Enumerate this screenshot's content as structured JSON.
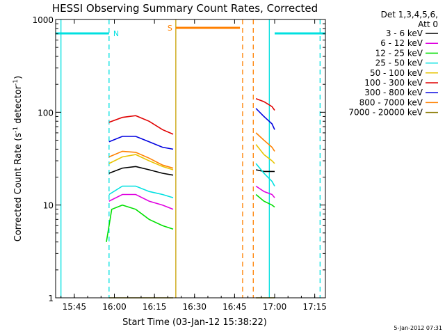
{
  "chart_data": {
    "type": "line",
    "title": "HESSI Observing Summary Count Rates, Corrected",
    "xlabel": "Start Time (03-Jan-12 15:38:22)",
    "ylabel": "Corrected Count Rate (s⁻¹ detector⁻¹)",
    "ylabel_base": "Corrected Count Rate (s",
    "ylabel_mid": " detector",
    "ylabel_end": ")",
    "ylabel_exp": "-1",
    "yscale": "log",
    "ylim": [
      1,
      1000
    ],
    "xlim": [
      "15:38",
      "17:19"
    ],
    "x_ticks": [
      "15:45",
      "16:00",
      "16:15",
      "16:30",
      "16:45",
      "17:00",
      "17:15"
    ],
    "y_ticks": [
      "1",
      "10",
      "100",
      "1000"
    ],
    "legend_header": [
      "Det 1,3,4,5,6,",
      "Att 0"
    ],
    "legend_position": "outside-right",
    "footer_date": "5-Jan-2012 07:31",
    "series": [
      {
        "name": "3 - 6 keV",
        "color": "#000000",
        "segments": [
          {
            "t": [
              "15:58",
              "16:03",
              "16:08",
              "16:13",
              "16:18",
              "16:22"
            ],
            "y": [
              22,
              25,
              26,
              24,
              22,
              21
            ]
          },
          {
            "t": [
              "16:53",
              "16:56",
              "16:59",
              "17:00"
            ],
            "y": [
              24,
              23,
              23,
              23
            ]
          }
        ]
      },
      {
        "name": "6 - 12 keV",
        "color": "#e000e0",
        "segments": [
          {
            "t": [
              "15:58",
              "16:03",
              "16:08",
              "16:13",
              "16:18",
              "16:22"
            ],
            "y": [
              11,
              13,
              13,
              11,
              10,
              9
            ]
          },
          {
            "t": [
              "16:53",
              "16:56",
              "16:59",
              "17:00"
            ],
            "y": [
              16,
              14,
              13,
              12
            ]
          }
        ]
      },
      {
        "name": "12 - 25 keV",
        "color": "#00e000",
        "segments": [
          {
            "t": [
              "15:57",
              "15:59",
              "16:03",
              "16:08",
              "16:13",
              "16:18",
              "16:22"
            ],
            "y": [
              4,
              9,
              10,
              9,
              7,
              6,
              5.5
            ]
          },
          {
            "t": [
              "16:53",
              "16:56",
              "16:59",
              "17:00"
            ],
            "y": [
              13,
              11,
              10,
              9.5
            ]
          }
        ]
      },
      {
        "name": "25 - 50 keV",
        "color": "#00e0e0",
        "segments": [
          {
            "t": [
              "15:58",
              "16:03",
              "16:08",
              "16:13",
              "16:18",
              "16:22"
            ],
            "y": [
              13,
              16,
              16,
              14,
              13,
              12
            ]
          },
          {
            "t": [
              "16:53",
              "16:56",
              "16:59",
              "17:00"
            ],
            "y": [
              28,
              22,
              18,
              16
            ]
          }
        ]
      },
      {
        "name": "50 - 100 keV",
        "color": "#e8c400",
        "segments": [
          {
            "t": [
              "15:58",
              "16:03",
              "16:08",
              "16:13",
              "16:18",
              "16:22"
            ],
            "y": [
              28,
              33,
              35,
              30,
              26,
              24
            ]
          },
          {
            "t": [
              "16:53",
              "16:56",
              "16:59",
              "17:00"
            ],
            "y": [
              45,
              35,
              30,
              28
            ]
          }
        ]
      },
      {
        "name": "100 - 300 keV",
        "color": "#e00000",
        "segments": [
          {
            "t": [
              "15:58",
              "16:03",
              "16:08",
              "16:13",
              "16:18",
              "16:22"
            ],
            "y": [
              78,
              88,
              92,
              80,
              65,
              58
            ]
          },
          {
            "t": [
              "16:53",
              "16:56",
              "16:59",
              "17:00"
            ],
            "y": [
              140,
              130,
              115,
              105
            ]
          }
        ]
      },
      {
        "name": "300 - 800 keV",
        "color": "#0000e0",
        "segments": [
          {
            "t": [
              "15:58",
              "16:03",
              "16:08",
              "16:13",
              "16:18",
              "16:22"
            ],
            "y": [
              48,
              55,
              55,
              48,
              42,
              40
            ]
          },
          {
            "t": [
              "16:53",
              "16:56",
              "16:59",
              "17:00"
            ],
            "y": [
              110,
              90,
              75,
              65
            ]
          }
        ]
      },
      {
        "name": "800 - 7000 keV",
        "color": "#ff8000",
        "segments": [
          {
            "t": [
              "15:58",
              "16:03",
              "16:08",
              "16:13",
              "16:18",
              "16:22"
            ],
            "y": [
              33,
              38,
              37,
              32,
              27,
              25
            ]
          },
          {
            "t": [
              "16:53",
              "16:56",
              "16:59",
              "17:00"
            ],
            "y": [
              60,
              50,
              42,
              38
            ]
          }
        ]
      },
      {
        "name": "7000 - 20000 keV",
        "color": "#8b7a00",
        "segments": [
          {
            "t": [
              "15:58",
              "16:03",
              "16:08",
              "16:13",
              "16:18",
              "16:22"
            ],
            "y": [
              1,
              1,
              1,
              1,
              1,
              1
            ]
          },
          {
            "t": [
              "16:53",
              "16:56",
              "16:59",
              "17:00"
            ],
            "y": [
              1,
              1,
              1,
              1
            ]
          }
        ]
      }
    ],
    "flags": [
      {
        "label": "N",
        "color": "#00e0e0",
        "segments": [
          [
            "15:38",
            "15:58"
          ],
          [
            "17:00",
            "17:19"
          ]
        ]
      },
      {
        "label": "S",
        "color": "#ff8000",
        "segments": [
          [
            "16:23",
            "16:47"
          ]
        ]
      }
    ],
    "vlines": [
      {
        "t": "15:40",
        "color": "#00e0e0",
        "style": "solid"
      },
      {
        "t": "15:58",
        "color": "#00e0e0",
        "style": "dashed"
      },
      {
        "t": "16:23",
        "color": "#c8a000",
        "style": "solid"
      },
      {
        "t": "16:48",
        "color": "#ff8000",
        "style": "dashed"
      },
      {
        "t": "16:52",
        "color": "#ff8000",
        "style": "dashed"
      },
      {
        "t": "16:58",
        "color": "#00e0e0",
        "style": "solid"
      },
      {
        "t": "17:17",
        "color": "#00e0e0",
        "style": "dashed"
      }
    ]
  }
}
